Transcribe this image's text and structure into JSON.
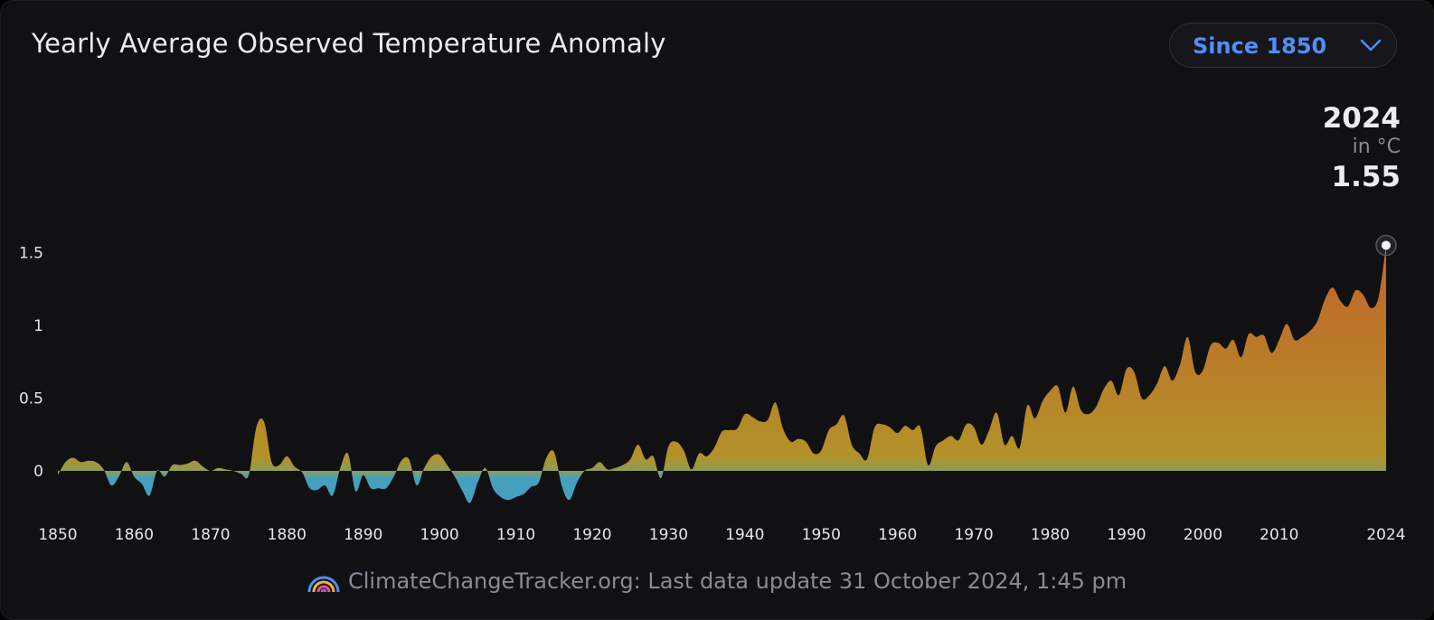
{
  "header": {
    "title": "Yearly Average Observed Temperature Anomaly",
    "range_select": {
      "label": "Since 1850",
      "icon": "chevron-down-icon"
    }
  },
  "readout": {
    "year": "2024",
    "unit": "in °C",
    "value": "1.55"
  },
  "footer": {
    "logo_icon": "rainbow-logo-icon",
    "text": "ClimateChangeTracker.org: Last data update 31 October 2024, 1:45 pm"
  },
  "colors": {
    "background": "#111113",
    "accent": "#4f8ff7",
    "positive_top": "#c2642a",
    "positive_bottom": "#b39128",
    "negative": "#46a0bd"
  },
  "chart_data": {
    "type": "area",
    "title": "Yearly Average Observed Temperature Anomaly",
    "xlabel": "",
    "ylabel": "",
    "unit": "°C",
    "xlim": [
      1850,
      2024
    ],
    "ylim": [
      -0.25,
      1.7
    ],
    "grid": false,
    "legend": "none",
    "x_ticks": [
      "1850",
      "1860",
      "1870",
      "1880",
      "1890",
      "1900",
      "1910",
      "1920",
      "1930",
      "1940",
      "1950",
      "1960",
      "1970",
      "1980",
      "1990",
      "2000",
      "2010",
      "2024"
    ],
    "y_ticks": [
      "0",
      "0.5",
      "1",
      "1.5"
    ],
    "highlight": {
      "x": 2024,
      "y": 1.55
    },
    "series": [
      {
        "x": [
          1850,
          1851,
          1852,
          1853,
          1854,
          1855,
          1856,
          1857,
          1858,
          1859,
          1860,
          1861,
          1862,
          1863,
          1864,
          1865,
          1866,
          1867,
          1868,
          1869,
          1870,
          1871,
          1872,
          1873,
          1874,
          1875,
          1876,
          1877,
          1878,
          1879,
          1880,
          1881,
          1882,
          1883,
          1884,
          1885,
          1886,
          1887,
          1888,
          1889,
          1890,
          1891,
          1892,
          1893,
          1894,
          1895,
          1896,
          1897,
          1898,
          1899,
          1900,
          1901,
          1902,
          1903,
          1904,
          1905,
          1906,
          1907,
          1908,
          1909,
          1910,
          1911,
          1912,
          1913,
          1914,
          1915,
          1916,
          1917,
          1918,
          1919,
          1920,
          1921,
          1922,
          1923,
          1924,
          1925,
          1926,
          1927,
          1928,
          1929,
          1930,
          1931,
          1932,
          1933,
          1934,
          1935,
          1936,
          1937,
          1938,
          1939,
          1940,
          1941,
          1942,
          1943,
          1944,
          1945,
          1946,
          1947,
          1948,
          1949,
          1950,
          1951,
          1952,
          1953,
          1954,
          1955,
          1956,
          1957,
          1958,
          1959,
          1960,
          1961,
          1962,
          1963,
          1964,
          1965,
          1966,
          1967,
          1968,
          1969,
          1970,
          1971,
          1972,
          1973,
          1974,
          1975,
          1976,
          1977,
          1978,
          1979,
          1980,
          1981,
          1982,
          1983,
          1984,
          1985,
          1986,
          1987,
          1988,
          1989,
          1990,
          1991,
          1992,
          1993,
          1994,
          1995,
          1996,
          1997,
          1998,
          1999,
          2000,
          2001,
          2002,
          2003,
          2004,
          2005,
          2006,
          2007,
          2008,
          2009,
          2010,
          2011,
          2012,
          2013,
          2014,
          2015,
          2016,
          2017,
          2018,
          2019,
          2020,
          2021,
          2022,
          2023,
          2024
        ],
        "values": [
          -0.03,
          0.06,
          0.09,
          0.06,
          0.07,
          0.06,
          0.01,
          -0.1,
          -0.04,
          0.06,
          -0.04,
          -0.09,
          -0.17,
          0,
          -0.04,
          0.04,
          0.04,
          0.05,
          0.07,
          0.03,
          0,
          0.02,
          0.01,
          0,
          -0.02,
          -0.03,
          0.3,
          0.34,
          0.06,
          0.04,
          0.1,
          0.03,
          -0.01,
          -0.12,
          -0.13,
          -0.1,
          -0.17,
          0.02,
          0.12,
          -0.14,
          -0.03,
          -0.12,
          -0.12,
          -0.12,
          -0.04,
          0.07,
          0.08,
          -0.1,
          0.02,
          0.1,
          0.11,
          0.04,
          -0.04,
          -0.14,
          -0.22,
          -0.08,
          0.02,
          -0.12,
          -0.18,
          -0.2,
          -0.18,
          -0.16,
          -0.11,
          -0.08,
          0.09,
          0.13,
          -0.1,
          -0.2,
          -0.08,
          0,
          0.02,
          0.06,
          0.01,
          0.02,
          0.04,
          0.08,
          0.18,
          0.08,
          0.1,
          -0.05,
          0.17,
          0.2,
          0.14,
          0.01,
          0.12,
          0.1,
          0.16,
          0.27,
          0.28,
          0.29,
          0.39,
          0.37,
          0.34,
          0.35,
          0.47,
          0.29,
          0.2,
          0.22,
          0.2,
          0.12,
          0.14,
          0.28,
          0.32,
          0.38,
          0.18,
          0.12,
          0.08,
          0.3,
          0.32,
          0.3,
          0.26,
          0.31,
          0.28,
          0.3,
          0.04,
          0.17,
          0.21,
          0.24,
          0.21,
          0.32,
          0.3,
          0.18,
          0.28,
          0.4,
          0.18,
          0.24,
          0.16,
          0.45,
          0.36,
          0.48,
          0.55,
          0.58,
          0.4,
          0.58,
          0.42,
          0.39,
          0.44,
          0.56,
          0.62,
          0.52,
          0.7,
          0.68,
          0.5,
          0.52,
          0.6,
          0.72,
          0.62,
          0.73,
          0.92,
          0.68,
          0.69,
          0.86,
          0.88,
          0.84,
          0.9,
          0.78,
          0.94,
          0.92,
          0.93,
          0.81,
          0.9,
          1.01,
          0.9,
          0.92,
          0.96,
          1.03,
          1.18,
          1.26,
          1.17,
          1.13,
          1.24,
          1.21,
          1.12,
          1.19,
          1.55
        ]
      }
    ]
  }
}
